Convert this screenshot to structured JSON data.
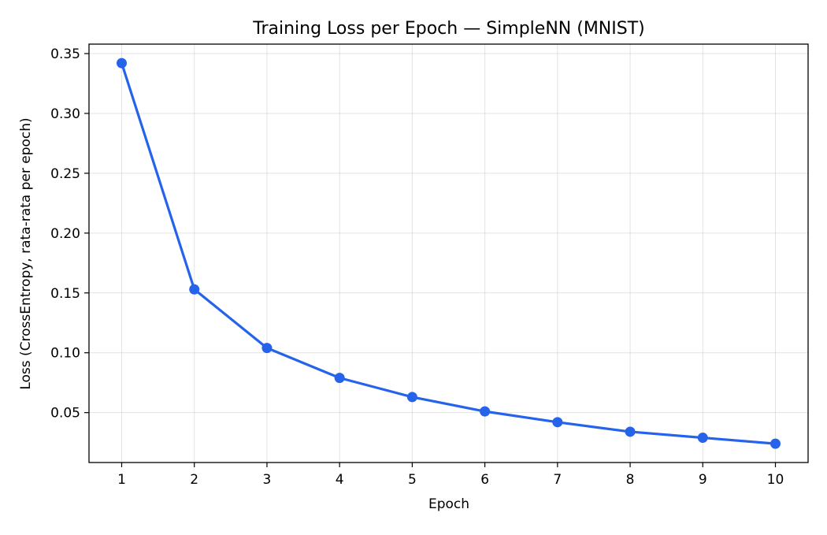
{
  "chart_data": {
    "type": "line",
    "title": "Training Loss per Epoch — SimpleNN (MNIST)",
    "xlabel": "Epoch",
    "ylabel": "Loss (CrossEntropy, rata-rata per epoch)",
    "x": [
      1,
      2,
      3,
      4,
      5,
      6,
      7,
      8,
      9,
      10
    ],
    "series": [
      {
        "values": [
          0.342,
          0.153,
          0.104,
          0.079,
          0.063,
          0.051,
          0.042,
          0.034,
          0.029,
          0.024
        ],
        "color": "#2563eb",
        "marker": "circle"
      }
    ],
    "xlim": [
      0.55,
      10.45
    ],
    "ylim": [
      0.0083,
      0.3579
    ],
    "xticks": [
      1,
      2,
      3,
      4,
      5,
      6,
      7,
      8,
      9,
      10
    ],
    "yticks": [
      0.05,
      0.1,
      0.15,
      0.2,
      0.25,
      0.3,
      0.35
    ],
    "ytick_labels": [
      "0.05",
      "0.10",
      "0.15",
      "0.20",
      "0.25",
      "0.30",
      "0.35"
    ],
    "grid": true,
    "legend": false
  }
}
